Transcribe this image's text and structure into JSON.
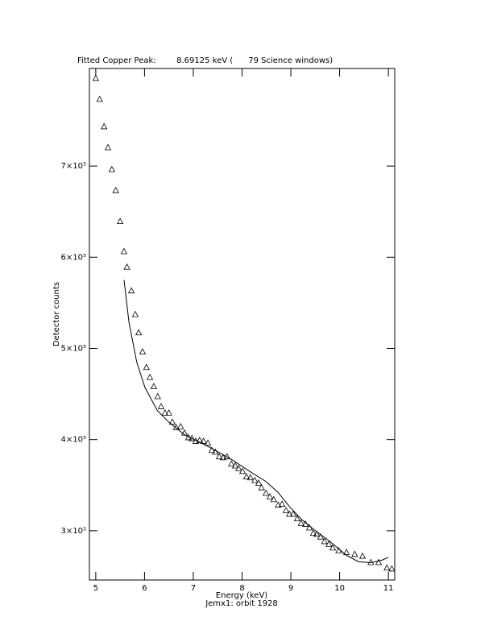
{
  "chart_data": {
    "type": "scatter",
    "title": "Fitted Copper Peak:        8.69125 keV (      79 Science windows)",
    "x_label": "Energy (keV)",
    "subtitle": "Jemx1: orbit 1928",
    "y_label": "Detector counts",
    "xlim": [
      4.87,
      11.13
    ],
    "ylim": [
      246000,
      807000
    ],
    "xticks": [
      5,
      6,
      7,
      8,
      9,
      10,
      11
    ],
    "yticks": [
      {
        "value": 300000,
        "label": "3×10⁵"
      },
      {
        "value": 400000,
        "label": "4×10⁵"
      },
      {
        "value": 500000,
        "label": "5×10⁵"
      },
      {
        "value": 600000,
        "label": "6×10⁵"
      },
      {
        "value": 700000,
        "label": "7×10⁵"
      }
    ],
    "series": [
      {
        "type": "scatter",
        "marker": "triangle",
        "color": "#000000",
        "x": [
          5.0,
          5.08,
          5.17,
          5.25,
          5.33,
          5.41,
          5.5,
          5.58,
          5.64,
          5.73,
          5.81,
          5.88,
          5.96,
          6.04,
          6.11,
          6.19,
          6.27,
          6.34,
          6.42,
          6.5,
          6.57,
          6.65,
          6.74,
          6.82,
          6.9,
          6.97,
          7.05,
          7.13,
          7.21,
          7.3,
          7.38,
          7.45,
          7.53,
          7.61,
          7.69,
          7.78,
          7.86,
          7.93,
          8.01,
          8.09,
          8.17,
          8.26,
          8.34,
          8.4,
          8.49,
          8.57,
          8.65,
          8.74,
          8.82,
          8.9,
          8.97,
          9.05,
          9.13,
          9.21,
          9.3,
          9.38,
          9.46,
          9.53,
          9.61,
          9.69,
          9.78,
          9.86,
          9.98,
          10.14,
          10.31,
          10.47,
          10.64,
          10.8,
          10.97,
          11.07
        ],
        "values": [
          796000,
          773000,
          743000,
          720000,
          696000,
          673000,
          639000,
          606000,
          589000,
          563000,
          537000,
          517000,
          496000,
          479000,
          468000,
          458000,
          447000,
          436000,
          429000,
          429000,
          419000,
          413000,
          414000,
          407000,
          402000,
          401000,
          398000,
          399000,
          398000,
          396000,
          388000,
          386000,
          381000,
          380000,
          381000,
          373000,
          371000,
          368000,
          365000,
          359000,
          358000,
          355000,
          352000,
          347000,
          341000,
          337000,
          334000,
          328000,
          329000,
          322000,
          318000,
          318000,
          313000,
          308000,
          307000,
          303000,
          297000,
          296000,
          293000,
          288000,
          285000,
          281000,
          278000,
          276000,
          274000,
          272000,
          265000,
          265000,
          259000,
          258000
        ]
      },
      {
        "type": "line",
        "color": "#000000",
        "x": [
          5.58,
          5.68,
          5.84,
          6.01,
          6.26,
          6.5,
          6.83,
          7.32,
          7.82,
          8.16,
          8.49,
          8.74,
          8.98,
          9.23,
          9.48,
          9.81,
          10.14,
          10.39,
          10.64,
          10.88,
          11.0
        ],
        "values": [
          575000,
          529000,
          485000,
          457000,
          432000,
          419000,
          405000,
          392000,
          377000,
          365000,
          354000,
          342000,
          326000,
          312000,
          301000,
          288000,
          273000,
          266000,
          265000,
          268000,
          271000
        ]
      }
    ]
  }
}
